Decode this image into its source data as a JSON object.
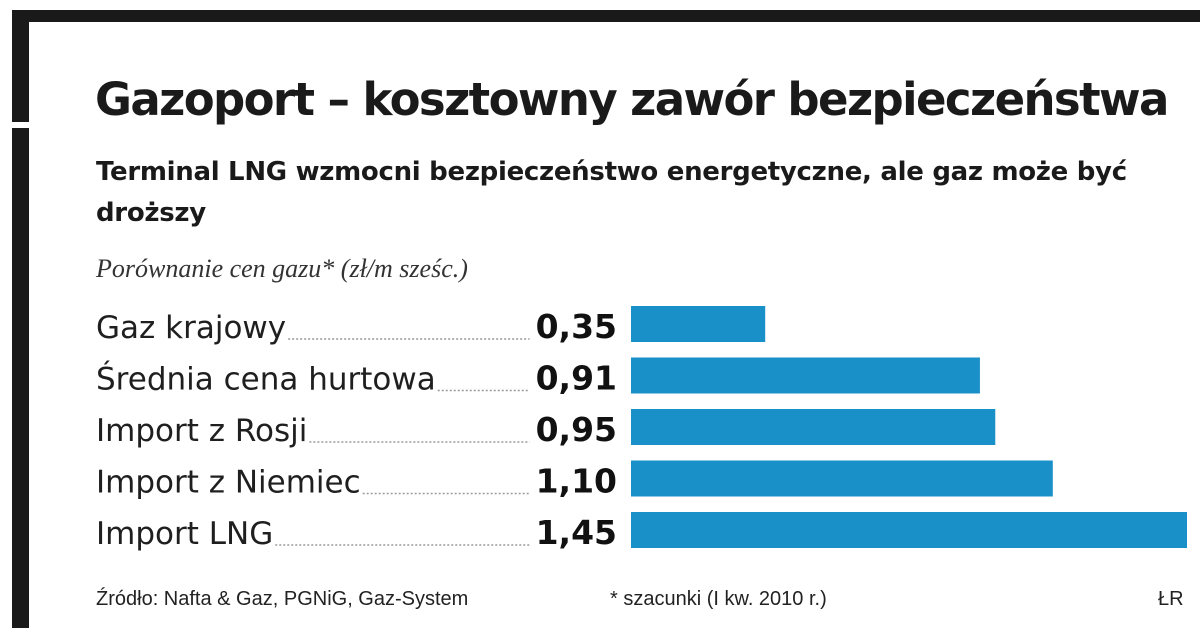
{
  "chart_data": {
    "type": "bar",
    "orientation": "horizontal",
    "title": "Gazoport – kosztowny zawór bezpieczeństwa",
    "subtitle": "Terminal LNG wzmocni bezpieczeństwo energetyczne, ale gaz może być droższy",
    "axis_caption": "Porównanie cen gazu* (zł/m sześc.)",
    "categories": [
      "Gaz krajowy",
      "Średnia cena hurtowa",
      "Import z Rosji",
      "Import z Niemiec",
      "Import LNG"
    ],
    "values": [
      0.35,
      0.91,
      0.95,
      1.1,
      1.45
    ],
    "value_labels": [
      "0,35",
      "0,91",
      "0,95",
      "1,10",
      "1,45"
    ],
    "bar_color": "#1a90c8",
    "grid": false,
    "legend": "none"
  },
  "footer": {
    "source": "Źródło: Nafta & Gaz, PGNiG, Gaz-System",
    "note": "* szacunki (I kw. 2010 r.)",
    "author": "ŁR"
  }
}
